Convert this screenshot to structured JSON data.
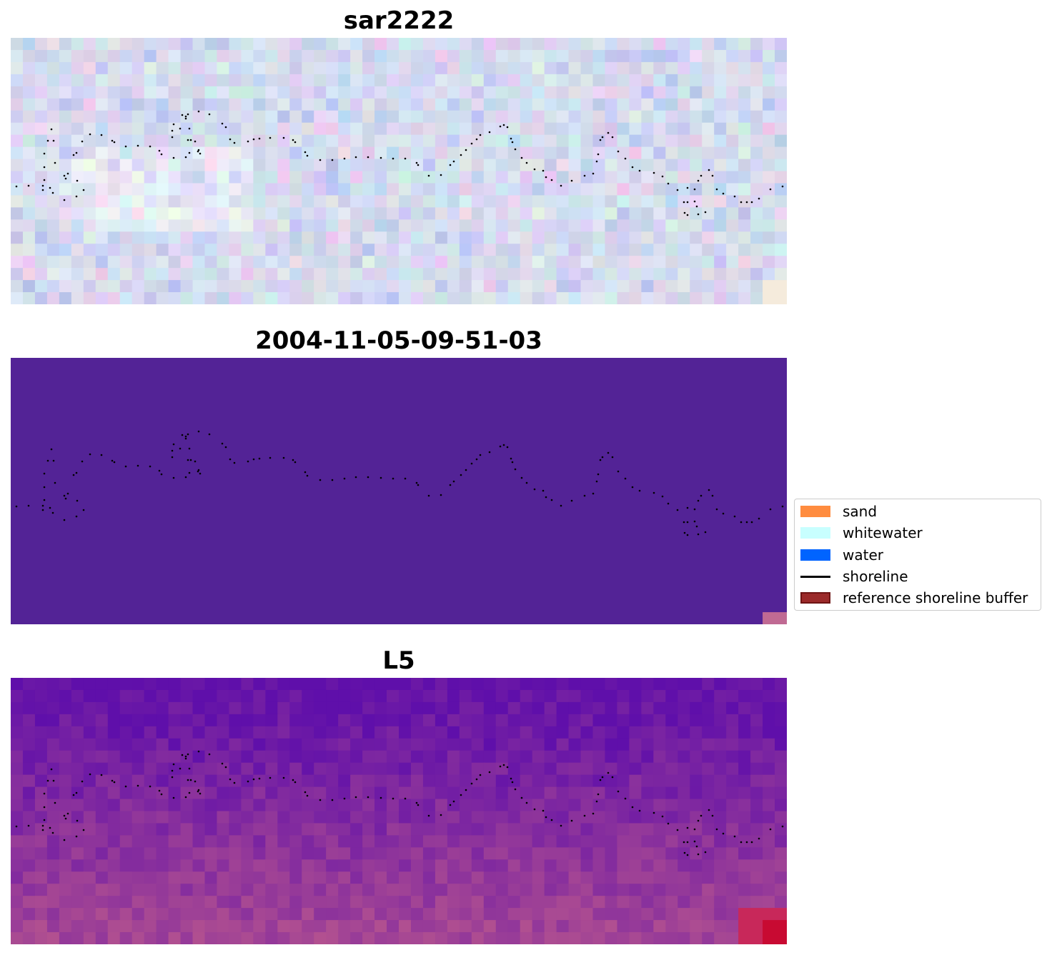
{
  "panels": [
    {
      "title": "sar2222",
      "kind": "rgb image"
    },
    {
      "title": "2004-11-05-09-51-03",
      "kind": "classified image"
    },
    {
      "title": "L5",
      "kind": "index image"
    }
  ],
  "legend": {
    "items": [
      {
        "label": "sand",
        "color": "#ff8c3f",
        "shape": "patch"
      },
      {
        "label": "whitewater",
        "color": "#c8ffff",
        "shape": "patch"
      },
      {
        "label": "water",
        "color": "#0064ff",
        "shape": "patch"
      },
      {
        "label": "shoreline",
        "color": "#000000",
        "shape": "line"
      },
      {
        "label": "reference shoreline buffer",
        "color": "#9b2a2a",
        "shape": "patch"
      }
    ]
  },
  "colors": {
    "classified_background": "#532396",
    "classified_corner": "#c06a93",
    "shoreline_points": "#000000"
  }
}
